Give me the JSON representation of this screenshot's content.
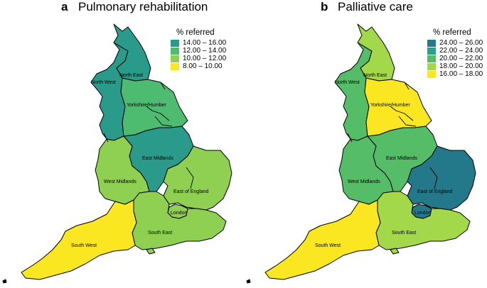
{
  "panels": [
    {
      "letter": "a",
      "title": "Pulmonary rehabilitation",
      "legend": {
        "title": "% referred",
        "items": [
          {
            "label": "14.00 – 16.00",
            "color": "#2a9a8a"
          },
          {
            "label": "12.00 – 14.00",
            "color": "#4dbb70"
          },
          {
            "label": "10.00 – 12.00",
            "color": "#8fcf52"
          },
          {
            "label": "8.00 – 10.00",
            "color": "#fae722"
          }
        ]
      },
      "regions": {
        "north_east": {
          "label": "North East",
          "color": "#2a9a8a"
        },
        "north_west": {
          "label": "North West",
          "color": "#2a9a8a"
        },
        "yorkshire_humber": {
          "label": "Yorkshire/Humber",
          "color": "#4dbb70"
        },
        "east_midlands": {
          "label": "East Midlands",
          "color": "#2a9a8a"
        },
        "west_midlands": {
          "label": "West Midlands",
          "color": "#8fcf52"
        },
        "east_of_england": {
          "label": "East of England",
          "color": "#8fcf52"
        },
        "london": {
          "label": "London",
          "color": "#8fcf52"
        },
        "south_east": {
          "label": "South East",
          "color": "#8fcf52"
        },
        "south_west": {
          "label": "South West",
          "color": "#fae722"
        }
      }
    },
    {
      "letter": "b",
      "title": "Palliative care",
      "legend": {
        "title": "% referred",
        "items": [
          {
            "label": "24.00 – 26.00",
            "color": "#23788a"
          },
          {
            "label": "22.00 – 24.00",
            "color": "#26a489"
          },
          {
            "label": "20.00 – 22.00",
            "color": "#55bc68"
          },
          {
            "label": "18.00 – 20.00",
            "color": "#a2d84a"
          },
          {
            "label": "16.00 – 18.00",
            "color": "#fae722"
          }
        ]
      },
      "regions": {
        "north_east": {
          "label": "North East",
          "color": "#a2d84a"
        },
        "north_west": {
          "label": "North West",
          "color": "#55bc68"
        },
        "yorkshire_humber": {
          "label": "Yorkshire/Humber",
          "color": "#fae722"
        },
        "east_midlands": {
          "label": "East Midlands",
          "color": "#55bc68"
        },
        "west_midlands": {
          "label": "West Midlands",
          "color": "#55bc68"
        },
        "east_of_england": {
          "label": "East of England",
          "color": "#23788a"
        },
        "london": {
          "label": "London",
          "color": "#23788a"
        },
        "south_east": {
          "label": "South East",
          "color": "#a2d84a"
        },
        "south_west": {
          "label": "South West",
          "color": "#fae722"
        }
      }
    }
  ]
}
